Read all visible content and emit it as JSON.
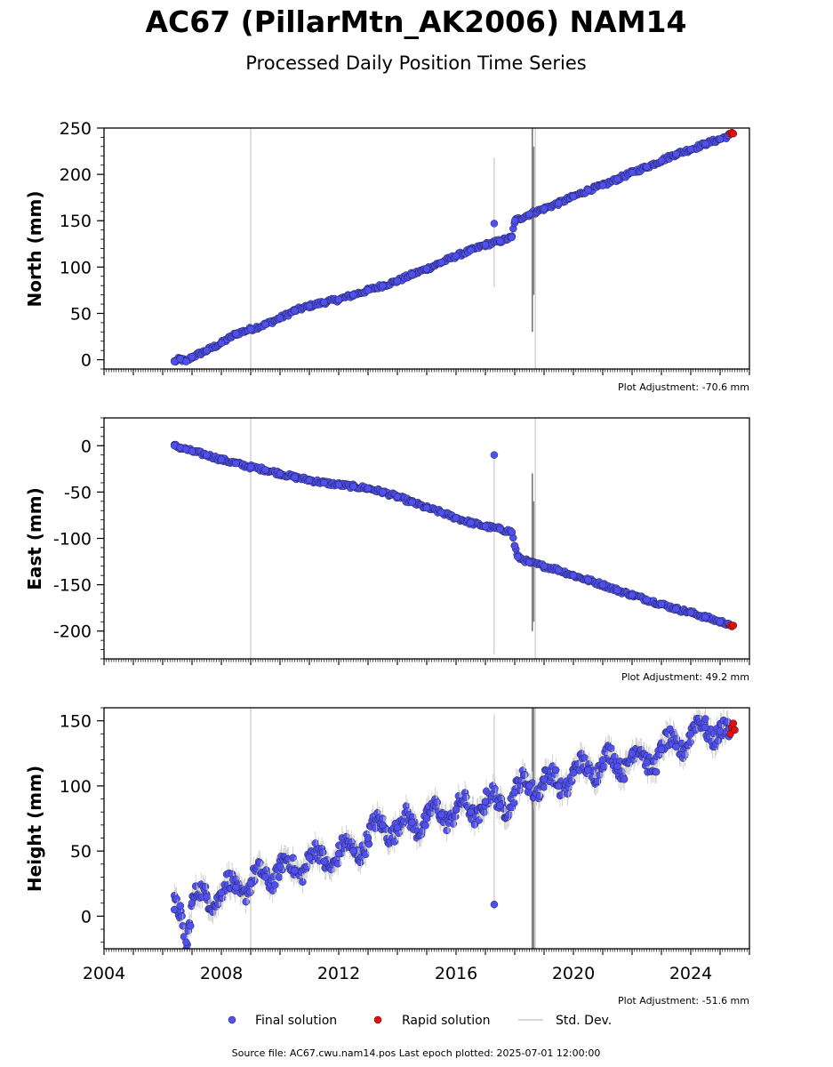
{
  "figure": {
    "title": "AC67 (PillarMtn_AK2006) NAM14",
    "subtitle": "Processed Daily Position Time Series",
    "footer": "Source file: AC67.cwu.nam14.pos  Last epoch plotted: 2025-07-01 12:00:00"
  },
  "legend": {
    "final": "Final solution",
    "rapid": "Rapid solution",
    "stddev": "Std. Dev.",
    "placement": "bottom-center"
  },
  "colors": {
    "final": "#5050ee",
    "final_edge": "#1a1a3a",
    "rapid": "#dd1111",
    "stddev": "#b0b0b0"
  },
  "chart_data": [
    {
      "type": "scatter",
      "component": "North",
      "ylabel": "North (mm)",
      "adjustment": "Plot Adjustment: -70.6 mm",
      "xlim": [
        2004.0,
        2026.0
      ],
      "ylim": [
        -10,
        250
      ],
      "yticks": [
        0,
        50,
        100,
        150,
        200,
        250
      ],
      "xtick_labels_shown": false,
      "series": [
        {
          "name": "Final solution",
          "x": [
            2006.4,
            2006.6,
            2006.8,
            2007.0,
            2007.5,
            2008.0,
            2008.5,
            2009.0,
            2009.5,
            2010.0,
            2010.5,
            2011.0,
            2011.5,
            2012.0,
            2012.5,
            2013.0,
            2013.5,
            2014.0,
            2014.5,
            2015.0,
            2015.5,
            2016.0,
            2016.5,
            2017.0,
            2017.3,
            2017.5,
            2017.9,
            2018.0,
            2018.5,
            2019.0,
            2019.5,
            2020.0,
            2020.5,
            2021.0,
            2021.5,
            2022.0,
            2022.5,
            2023.0,
            2023.5,
            2024.0,
            2024.5,
            2025.0,
            2025.3
          ],
          "y": [
            -2,
            1,
            -2,
            3,
            10,
            18,
            28,
            33,
            38,
            45,
            53,
            58,
            62,
            65,
            70,
            75,
            80,
            85,
            92,
            98,
            105,
            112,
            118,
            124,
            147,
            128,
            132,
            150,
            157,
            163,
            169,
            176,
            183,
            188,
            195,
            202,
            208,
            215,
            222,
            227,
            233,
            238,
            242
          ]
        },
        {
          "name": "Rapid solution",
          "x": [
            2025.35,
            2025.4,
            2025.45
          ],
          "y": [
            244,
            245,
            244
          ]
        }
      ],
      "errorbars": [
        {
          "x": 2009.0,
          "y0": -10,
          "y1": 250,
          "color": "#cccccc"
        },
        {
          "x": 2017.3,
          "y0": 78,
          "y1": 218,
          "color": "#cccccc"
        },
        {
          "x": 2018.6,
          "y0": 30,
          "y1": 250,
          "color": "#555555"
        },
        {
          "x": 2018.65,
          "y0": 70,
          "y1": 230,
          "color": "#777777"
        },
        {
          "x": 2018.7,
          "y0": -10,
          "y1": 250,
          "color": "#cccccc"
        }
      ]
    },
    {
      "type": "scatter",
      "component": "East",
      "ylabel": "East (mm)",
      "adjustment": "Plot Adjustment: 49.2 mm",
      "xlim": [
        2004.0,
        2026.0
      ],
      "ylim": [
        -230,
        30
      ],
      "yticks": [
        0,
        -50,
        -100,
        -150,
        -200
      ],
      "xtick_labels_shown": false,
      "series": [
        {
          "name": "Final solution",
          "x": [
            2006.4,
            2006.6,
            2006.8,
            2007.0,
            2007.5,
            2008.0,
            2008.5,
            2009.0,
            2009.5,
            2010.0,
            2010.5,
            2011.0,
            2011.5,
            2012.0,
            2012.5,
            2013.0,
            2013.5,
            2014.0,
            2014.5,
            2015.0,
            2015.5,
            2016.0,
            2016.5,
            2017.0,
            2017.3,
            2017.5,
            2017.9,
            2018.0,
            2018.1,
            2018.5,
            2019.0,
            2019.5,
            2020.0,
            2020.5,
            2021.0,
            2021.5,
            2022.0,
            2022.5,
            2023.0,
            2023.5,
            2024.0,
            2024.5,
            2025.0,
            2025.3
          ],
          "y": [
            0,
            -2,
            -4,
            -6,
            -10,
            -15,
            -19,
            -23,
            -26,
            -30,
            -34,
            -37,
            -40,
            -42,
            -44,
            -46,
            -50,
            -55,
            -61,
            -67,
            -72,
            -78,
            -83,
            -87,
            -10,
            -90,
            -93,
            -108,
            -120,
            -126,
            -130,
            -134,
            -140,
            -145,
            -150,
            -156,
            -161,
            -166,
            -171,
            -176,
            -180,
            -185,
            -190,
            -192
          ]
        },
        {
          "name": "Rapid solution",
          "x": [
            2025.35,
            2025.4,
            2025.45
          ],
          "y": [
            -194,
            -195,
            -194
          ]
        }
      ],
      "errorbars": [
        {
          "x": 2009.0,
          "y0": -230,
          "y1": 30,
          "color": "#cccccc"
        },
        {
          "x": 2017.3,
          "y0": -225,
          "y1": -10,
          "color": "#cccccc"
        },
        {
          "x": 2018.6,
          "y0": -200,
          "y1": -30,
          "color": "#555555"
        },
        {
          "x": 2018.65,
          "y0": -190,
          "y1": -60,
          "color": "#777777"
        },
        {
          "x": 2018.7,
          "y0": -230,
          "y1": 30,
          "color": "#cccccc"
        }
      ]
    },
    {
      "type": "scatter",
      "component": "Height",
      "ylabel": "Height (mm)",
      "adjustment": "Plot Adjustment: -51.6 mm",
      "xlim": [
        2004.0,
        2026.0
      ],
      "ylim": [
        -25,
        160
      ],
      "yticks": [
        0,
        50,
        100,
        150
      ],
      "xticks": [
        2004,
        2008,
        2012,
        2016,
        2020,
        2024
      ],
      "xtick_labels": [
        "2004",
        "2008",
        "2012",
        "2016",
        "2020",
        "2024"
      ],
      "xtick_labels_shown": true,
      "series": [
        {
          "name": "Final solution",
          "x": [
            2006.4,
            2006.6,
            2006.8,
            2007.0,
            2007.5,
            2008.0,
            2008.5,
            2009.0,
            2009.5,
            2010.0,
            2010.5,
            2011.0,
            2011.5,
            2012.0,
            2012.5,
            2013.0,
            2013.5,
            2014.0,
            2014.5,
            2015.0,
            2015.5,
            2016.0,
            2016.5,
            2017.0,
            2017.3,
            2017.5,
            2018.0,
            2018.5,
            2019.0,
            2019.5,
            2020.0,
            2020.5,
            2021.0,
            2021.5,
            2022.0,
            2022.5,
            2023.0,
            2023.5,
            2024.0,
            2024.5,
            2025.0,
            2025.3
          ],
          "y": [
            5,
            8,
            -20,
            10,
            15,
            18,
            22,
            25,
            30,
            38,
            35,
            45,
            42,
            48,
            50,
            60,
            70,
            68,
            72,
            75,
            78,
            82,
            80,
            88,
            9,
            85,
            95,
            100,
            105,
            100,
            110,
            112,
            120,
            115,
            125,
            118,
            128,
            130,
            140,
            145,
            142,
            138
          ]
        },
        {
          "name": "Rapid solution",
          "x": [
            2025.35,
            2025.4,
            2025.45,
            2025.5
          ],
          "y": [
            140,
            145,
            148,
            143
          ]
        }
      ],
      "errorbars": [
        {
          "x": 2009.0,
          "y0": -25,
          "y1": 160,
          "color": "#cccccc"
        },
        {
          "x": 2017.3,
          "y0": 5,
          "y1": 155,
          "color": "#cccccc"
        },
        {
          "x": 2018.6,
          "y0": -25,
          "y1": 160,
          "color": "#555555"
        },
        {
          "x": 2018.65,
          "y0": -25,
          "y1": 160,
          "color": "#777777"
        },
        {
          "x": 2018.7,
          "y0": -25,
          "y1": 160,
          "color": "#cccccc"
        }
      ]
    }
  ]
}
